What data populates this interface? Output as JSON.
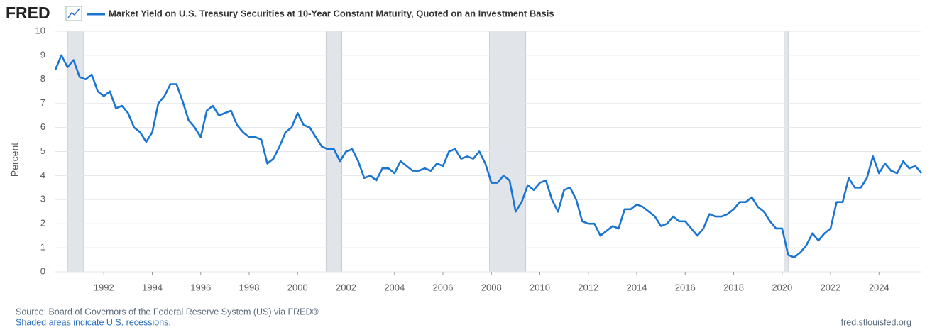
{
  "logo": "FRED",
  "chart_data": {
    "type": "line",
    "y_label": "Percent",
    "series": [
      {
        "name": "Market Yield on U.S. Treasury Securities at 10-Year Constant Maturity, Quoted on an Investment Basis",
        "color": "#1a75d2",
        "values": [
          8.4,
          9.0,
          8.5,
          8.8,
          8.1,
          8.0,
          8.2,
          7.5,
          7.3,
          7.5,
          6.8,
          6.9,
          6.6,
          6.0,
          5.8,
          5.4,
          5.8,
          7.0,
          7.3,
          7.8,
          7.8,
          7.1,
          6.3,
          6.0,
          5.6,
          6.7,
          6.9,
          6.5,
          6.6,
          6.7,
          6.1,
          5.8,
          5.6,
          5.6,
          5.5,
          4.5,
          4.7,
          5.2,
          5.8,
          6.0,
          6.6,
          6.1,
          6.0,
          5.6,
          5.2,
          5.1,
          5.1,
          4.6,
          5.0,
          5.1,
          4.6,
          3.9,
          4.0,
          3.8,
          4.3,
          4.3,
          4.1,
          4.6,
          4.4,
          4.2,
          4.2,
          4.3,
          4.2,
          4.5,
          4.4,
          5.0,
          5.1,
          4.7,
          4.8,
          4.7,
          5.0,
          4.5,
          3.7,
          3.7,
          4.0,
          3.8,
          2.5,
          2.9,
          3.6,
          3.4,
          3.7,
          3.8,
          3.0,
          2.5,
          3.4,
          3.5,
          3.0,
          2.1,
          2.0,
          2.0,
          1.5,
          1.7,
          1.9,
          1.8,
          2.6,
          2.6,
          2.8,
          2.7,
          2.5,
          2.3,
          1.9,
          2.0,
          2.3,
          2.1,
          2.1,
          1.8,
          1.5,
          1.8,
          2.4,
          2.3,
          2.3,
          2.4,
          2.6,
          2.9,
          2.9,
          3.1,
          2.7,
          2.5,
          2.1,
          1.8,
          1.8,
          0.7,
          0.6,
          0.8,
          1.1,
          1.6,
          1.3,
          1.6,
          1.8,
          2.9,
          2.9,
          3.9,
          3.5,
          3.5,
          3.9,
          4.8,
          4.1,
          4.5,
          4.2,
          4.1,
          4.6,
          4.3,
          4.4,
          4.1
        ]
      }
    ],
    "x": [
      1990,
      1990.25,
      1990.5,
      1990.75,
      1991,
      1991.25,
      1991.5,
      1991.75,
      1992,
      1992.25,
      1992.5,
      1992.75,
      1993,
      1993.25,
      1993.5,
      1993.75,
      1994,
      1994.25,
      1994.5,
      1994.75,
      1995,
      1995.25,
      1995.5,
      1995.75,
      1996,
      1996.25,
      1996.5,
      1996.75,
      1997,
      1997.25,
      1997.5,
      1997.75,
      1998,
      1998.25,
      1998.5,
      1998.75,
      1999,
      1999.25,
      1999.5,
      1999.75,
      2000,
      2000.25,
      2000.5,
      2000.75,
      2001,
      2001.25,
      2001.5,
      2001.75,
      2002,
      2002.25,
      2002.5,
      2002.75,
      2003,
      2003.25,
      2003.5,
      2003.75,
      2004,
      2004.25,
      2004.5,
      2004.75,
      2005,
      2005.25,
      2005.5,
      2005.75,
      2006,
      2006.25,
      2006.5,
      2006.75,
      2007,
      2007.25,
      2007.5,
      2007.75,
      2008,
      2008.25,
      2008.5,
      2008.75,
      2009,
      2009.25,
      2009.5,
      2009.75,
      2010,
      2010.25,
      2010.5,
      2010.75,
      2011,
      2011.25,
      2011.5,
      2011.75,
      2012,
      2012.25,
      2012.5,
      2012.75,
      2013,
      2013.25,
      2013.5,
      2013.75,
      2014,
      2014.25,
      2014.5,
      2014.75,
      2015,
      2015.25,
      2015.5,
      2015.75,
      2016,
      2016.25,
      2016.5,
      2016.75,
      2017,
      2017.25,
      2017.5,
      2017.75,
      2018,
      2018.25,
      2018.5,
      2018.75,
      2019,
      2019.25,
      2019.5,
      2019.75,
      2020,
      2020.25,
      2020.5,
      2020.75,
      2021,
      2021.25,
      2021.5,
      2021.75,
      2022,
      2022.25,
      2022.5,
      2022.75,
      2023,
      2023.25,
      2023.5,
      2023.75,
      2024,
      2024.25,
      2024.5,
      2024.75,
      2025,
      2025.25,
      2025.5,
      2025.75
    ],
    "xlim": [
      1990,
      2025.75
    ],
    "xticks": [
      1992,
      1994,
      1996,
      1998,
      2000,
      2002,
      2004,
      2006,
      2008,
      2010,
      2012,
      2014,
      2016,
      2018,
      2020,
      2022,
      2024
    ],
    "ylim": [
      0,
      10
    ],
    "yticks": [
      0,
      1,
      2,
      3,
      4,
      5,
      6,
      7,
      8,
      9,
      10
    ],
    "grid": true,
    "recessions": [
      {
        "start": 1990.5,
        "end": 1991.17
      },
      {
        "start": 2001.17,
        "end": 2001.83
      },
      {
        "start": 2007.92,
        "end": 2009.42
      },
      {
        "start": 2020.08,
        "end": 2020.25
      }
    ],
    "recession_color": "#e1e5ea",
    "source": "Source: Board of Governors of the Federal Reserve System (US) via FRED®",
    "note": "Shaded areas indicate U.S. recessions.",
    "url": "fred.stlouisfed.org"
  }
}
